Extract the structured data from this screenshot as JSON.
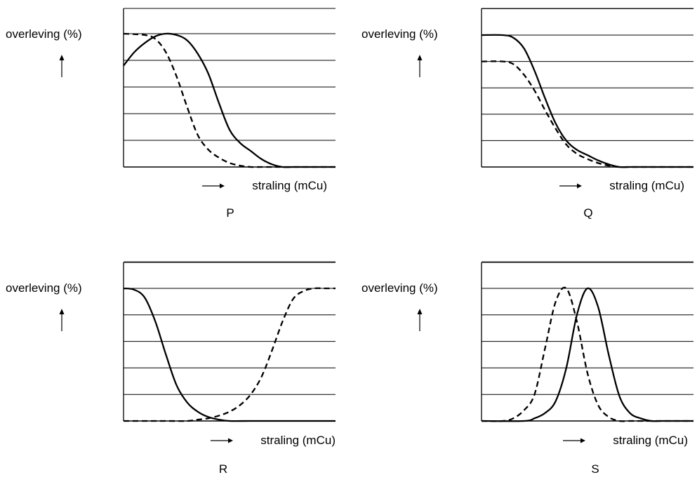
{
  "chart_data": [
    {
      "type": "line",
      "panel_label": "P",
      "ylabel": "overleving (%)",
      "xlabel": "straling (mCu)",
      "ylim": [
        0,
        100
      ],
      "xlim": [
        0,
        100
      ],
      "grid": true,
      "series": [
        {
          "style": "solid",
          "x": [
            0,
            5,
            10,
            15,
            20,
            25,
            30,
            35,
            40,
            45,
            50,
            55,
            60,
            65,
            70,
            75,
            80,
            90,
            100
          ],
          "y": [
            76,
            86,
            93,
            98,
            100,
            99,
            95,
            85,
            70,
            48,
            28,
            18,
            12,
            6,
            2,
            0,
            0,
            0,
            0
          ]
        },
        {
          "style": "dashed",
          "x": [
            0,
            10,
            15,
            20,
            25,
            30,
            35,
            40,
            45,
            50,
            55,
            60,
            65,
            70,
            80,
            90,
            100
          ],
          "y": [
            100,
            99,
            96,
            86,
            68,
            45,
            24,
            13,
            7,
            3,
            1,
            0,
            0,
            0,
            0,
            0,
            0
          ]
        }
      ]
    },
    {
      "type": "line",
      "panel_label": "Q",
      "ylabel": "overleving (%)",
      "xlabel": "straling (mCu)",
      "ylim": [
        0,
        100
      ],
      "xlim": [
        0,
        100
      ],
      "grid": true,
      "series": [
        {
          "style": "solid",
          "x": [
            0,
            10,
            15,
            20,
            25,
            30,
            35,
            40,
            45,
            50,
            55,
            60,
            65,
            70,
            75,
            80,
            90,
            100
          ],
          "y": [
            100,
            100,
            98,
            90,
            73,
            52,
            33,
            20,
            13,
            9,
            5,
            2,
            0,
            0,
            0,
            0,
            0,
            0
          ]
        },
        {
          "style": "dashed",
          "x": [
            0,
            10,
            15,
            20,
            25,
            30,
            35,
            40,
            45,
            50,
            55,
            60,
            65,
            70,
            75,
            80,
            90,
            100
          ],
          "y": [
            80,
            80,
            78,
            70,
            58,
            43,
            29,
            17,
            10,
            6,
            3,
            1,
            0,
            0,
            0,
            0,
            0,
            0
          ]
        }
      ]
    },
    {
      "type": "line",
      "panel_label": "R",
      "ylabel": "overleving (%)",
      "xlabel": "straling (mCu)",
      "ylim": [
        0,
        100
      ],
      "xlim": [
        0,
        100
      ],
      "grid": true,
      "series": [
        {
          "style": "solid",
          "x": [
            0,
            5,
            10,
            15,
            20,
            25,
            30,
            35,
            40,
            45,
            50,
            60,
            70,
            80,
            90,
            100
          ],
          "y": [
            100,
            99,
            93,
            75,
            50,
            27,
            14,
            7,
            3,
            1,
            0,
            0,
            0,
            0,
            0,
            0
          ]
        },
        {
          "style": "dashed",
          "x": [
            0,
            10,
            20,
            30,
            35,
            40,
            45,
            50,
            55,
            60,
            65,
            70,
            75,
            80,
            85,
            90,
            95,
            100
          ],
          "y": [
            0,
            0,
            0,
            0,
            1,
            2,
            4,
            7,
            12,
            20,
            33,
            53,
            75,
            92,
            98,
            100,
            100,
            100
          ]
        }
      ]
    },
    {
      "type": "line",
      "panel_label": "S",
      "ylabel": "overleving (%)",
      "xlabel": "straling (mCu)",
      "ylim": [
        0,
        100
      ],
      "xlim": [
        0,
        100
      ],
      "grid": true,
      "series": [
        {
          "style": "solid",
          "x": [
            0,
            20,
            25,
            30,
            35,
            40,
            45,
            50,
            55,
            60,
            65,
            70,
            75,
            80,
            85,
            90,
            100
          ],
          "y": [
            0,
            0,
            2,
            6,
            15,
            40,
            80,
            100,
            86,
            50,
            19,
            6,
            2,
            0,
            0,
            0,
            0
          ]
        },
        {
          "style": "dashed",
          "x": [
            0,
            10,
            15,
            20,
            25,
            30,
            35,
            40,
            45,
            50,
            55,
            60,
            65,
            70,
            80,
            100
          ],
          "y": [
            0,
            0,
            2,
            8,
            20,
            55,
            90,
            100,
            75,
            36,
            12,
            3,
            0,
            0,
            0,
            0
          ]
        }
      ]
    }
  ]
}
